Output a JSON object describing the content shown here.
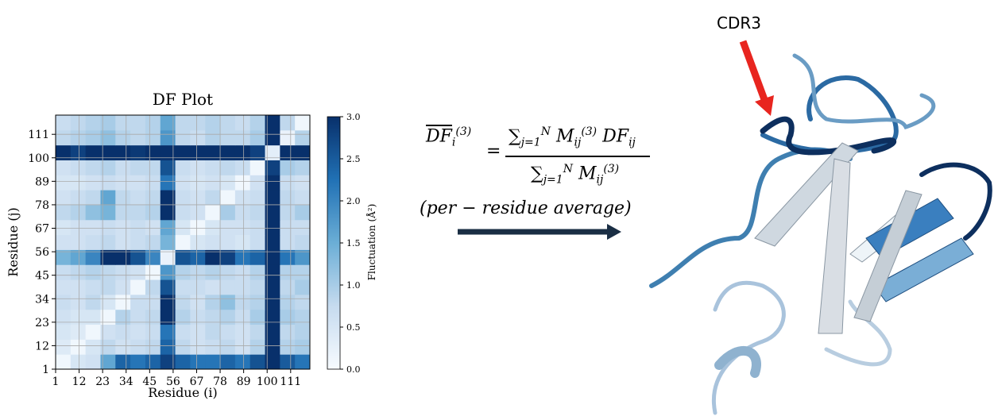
{
  "chart_data": {
    "type": "heatmap",
    "title": "DF Plot",
    "x_label": "Residue (i)",
    "y_label": "Residue (j)",
    "xlim": [
      1,
      120
    ],
    "ylim": [
      1,
      120
    ],
    "xticks": [
      1,
      12,
      23,
      34,
      45,
      56,
      67,
      78,
      89,
      100,
      111
    ],
    "yticks": [
      1,
      12,
      23,
      34,
      45,
      56,
      67,
      78,
      89,
      100,
      111
    ],
    "grid": true,
    "colorbar_label": "Fluctuation (Å²)",
    "clim": [
      0,
      3
    ],
    "cticks": [
      {
        "value": 0,
        "label": "0.0"
      },
      0.5,
      {
        "value": 1,
        "label": "1.0"
      },
      1.5,
      {
        "value": 2,
        "label": "2.0"
      },
      2.5,
      {
        "value": 3,
        "label": "3.0"
      }
    ],
    "colormap": [
      "#f7fbff",
      "#c6dbef",
      "#6baed6",
      "#2171b5",
      "#08306b"
    ],
    "matrix": [
      [
        0.1,
        0.5,
        0.6,
        1.6,
        2.4,
        2.2,
        2.4,
        2.8,
        2.4,
        2.2,
        2.2,
        2.4,
        2.2,
        2.6,
        3.0,
        2.5,
        2.2
      ],
      [
        0.4,
        0.1,
        0.5,
        0.8,
        0.6,
        0.7,
        0.8,
        2.4,
        0.8,
        0.6,
        0.7,
        0.8,
        0.6,
        0.9,
        3.0,
        0.9,
        1.0
      ],
      [
        0.5,
        0.4,
        0.1,
        0.6,
        0.7,
        0.6,
        0.7,
        2.2,
        0.7,
        0.6,
        0.8,
        0.7,
        0.6,
        0.8,
        3.0,
        0.8,
        0.9
      ],
      [
        0.6,
        0.5,
        0.5,
        0.1,
        0.9,
        0.7,
        0.8,
        3.0,
        0.9,
        0.7,
        0.8,
        0.9,
        0.7,
        1.0,
        3.0,
        1.0,
        0.9
      ],
      [
        0.7,
        0.6,
        0.8,
        0.5,
        0.1,
        0.7,
        0.7,
        3.0,
        0.8,
        0.6,
        0.9,
        1.2,
        0.8,
        0.9,
        3.0,
        0.9,
        0.8
      ],
      [
        0.6,
        0.6,
        0.7,
        0.8,
        0.6,
        0.1,
        0.8,
        2.6,
        0.7,
        0.7,
        0.6,
        0.7,
        0.7,
        0.8,
        3.0,
        0.8,
        1.0
      ],
      [
        0.7,
        0.8,
        0.9,
        0.8,
        0.7,
        0.6,
        0.1,
        1.8,
        0.9,
        0.8,
        0.9,
        0.8,
        0.7,
        0.9,
        3.0,
        0.9,
        0.9
      ],
      [
        1.4,
        1.6,
        2.0,
        3.0,
        3.0,
        2.6,
        2.0,
        0.2,
        2.6,
        2.4,
        3.0,
        2.8,
        2.2,
        2.4,
        3.0,
        2.2,
        1.8
      ],
      [
        0.6,
        0.6,
        0.7,
        0.8,
        0.6,
        0.7,
        0.8,
        1.4,
        0.1,
        0.5,
        0.6,
        0.6,
        0.5,
        0.7,
        3.0,
        0.7,
        0.8
      ],
      [
        0.5,
        0.6,
        0.6,
        0.7,
        0.6,
        0.7,
        0.6,
        1.6,
        0.5,
        0.1,
        0.5,
        0.6,
        0.6,
        0.7,
        3.0,
        0.7,
        0.7
      ],
      [
        0.8,
        0.9,
        1.2,
        1.4,
        0.8,
        0.8,
        0.9,
        3.0,
        0.7,
        0.6,
        0.1,
        1.0,
        0.7,
        0.8,
        3.0,
        0.8,
        1.0
      ],
      [
        0.6,
        0.7,
        0.8,
        1.6,
        0.8,
        0.7,
        0.8,
        3.0,
        0.7,
        0.6,
        0.8,
        0.1,
        0.6,
        0.7,
        3.0,
        0.8,
        0.7
      ],
      [
        0.5,
        0.5,
        0.6,
        0.7,
        0.6,
        0.6,
        0.7,
        2.2,
        0.6,
        0.5,
        0.6,
        0.5,
        0.1,
        0.6,
        3.0,
        0.7,
        0.6
      ],
      [
        0.6,
        0.7,
        0.8,
        0.9,
        0.7,
        0.8,
        0.8,
        2.6,
        0.7,
        0.6,
        0.7,
        0.8,
        0.7,
        0.1,
        2.8,
        1.0,
        0.9
      ],
      [
        3.0,
        2.8,
        3.0,
        3.0,
        3.0,
        2.9,
        3.0,
        3.0,
        3.0,
        3.0,
        3.0,
        3.0,
        3.0,
        2.8,
        0.3,
        3.0,
        3.0
      ],
      [
        0.8,
        0.9,
        1.0,
        1.2,
        0.9,
        0.8,
        0.9,
        1.8,
        0.8,
        0.7,
        0.9,
        0.8,
        0.8,
        1.0,
        3.0,
        0.2,
        0.9
      ],
      [
        0.7,
        0.8,
        0.9,
        1.0,
        0.8,
        0.8,
        0.9,
        1.6,
        0.8,
        0.8,
        0.9,
        0.8,
        0.7,
        0.9,
        3.0,
        0.8,
        0.1
      ]
    ]
  },
  "equation": {
    "lhs": "DF",
    "lhs_sub": "i",
    "lhs_sup": "(3)",
    "equals": "=",
    "num_sum": "∑",
    "num_sum_sub": "j=1",
    "num_sum_sup": "N",
    "num_m": "M",
    "num_m_sub": "ij",
    "num_m_sup": "(3)",
    "num_df": "DF",
    "num_df_sub": "ij",
    "den_sum": "∑",
    "den_sum_sub": "j=1",
    "den_sum_sup": "N",
    "den_m": "M",
    "den_m_sub": "ij",
    "den_m_sup": "(3)",
    "caption": "(per − residue average)"
  },
  "structure_label": "CDR3"
}
